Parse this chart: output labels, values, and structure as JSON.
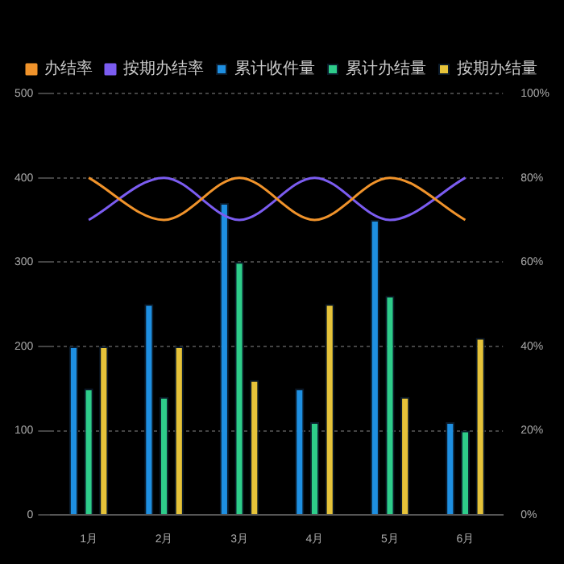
{
  "chart_data": {
    "type": "bar",
    "categories": [
      "1月",
      "2月",
      "3月",
      "4月",
      "5月",
      "6月"
    ],
    "series": [
      {
        "name": "累计收件量",
        "color": "#1e8fe1",
        "values": [
          200,
          250,
          370,
          150,
          350,
          110
        ]
      },
      {
        "name": "累计办结量",
        "color": "#2ecc8a",
        "values": [
          150,
          140,
          300,
          110,
          260,
          100
        ]
      },
      {
        "name": "按期办结量",
        "color": "#e5c33a",
        "values": [
          200,
          200,
          160,
          250,
          140,
          210
        ]
      },
      {
        "name": "办结率",
        "type": "line",
        "axis": "y2",
        "color": "#f0932b",
        "values": [
          80,
          70,
          80,
          70,
          80,
          70
        ]
      },
      {
        "name": "按期办结率",
        "type": "line",
        "axis": "y2",
        "color": "#7b5cf0",
        "values": [
          70,
          80,
          70,
          80,
          70,
          80
        ]
      }
    ],
    "ylim": [
      0,
      500
    ],
    "yticks": [
      0,
      100,
      200,
      300,
      400,
      500
    ],
    "y2lim": [
      0,
      100
    ],
    "y2ticks": [
      {
        "value": 0,
        "label": "0%"
      },
      {
        "value": 20,
        "label": "20%"
      },
      {
        "value": 40,
        "label": "40%"
      },
      {
        "value": 60,
        "label": "60%"
      },
      {
        "value": 80,
        "label": "80%"
      },
      {
        "value": 100,
        "label": "100%"
      }
    ],
    "grid": "y",
    "legend": "top",
    "marker": "none"
  }
}
